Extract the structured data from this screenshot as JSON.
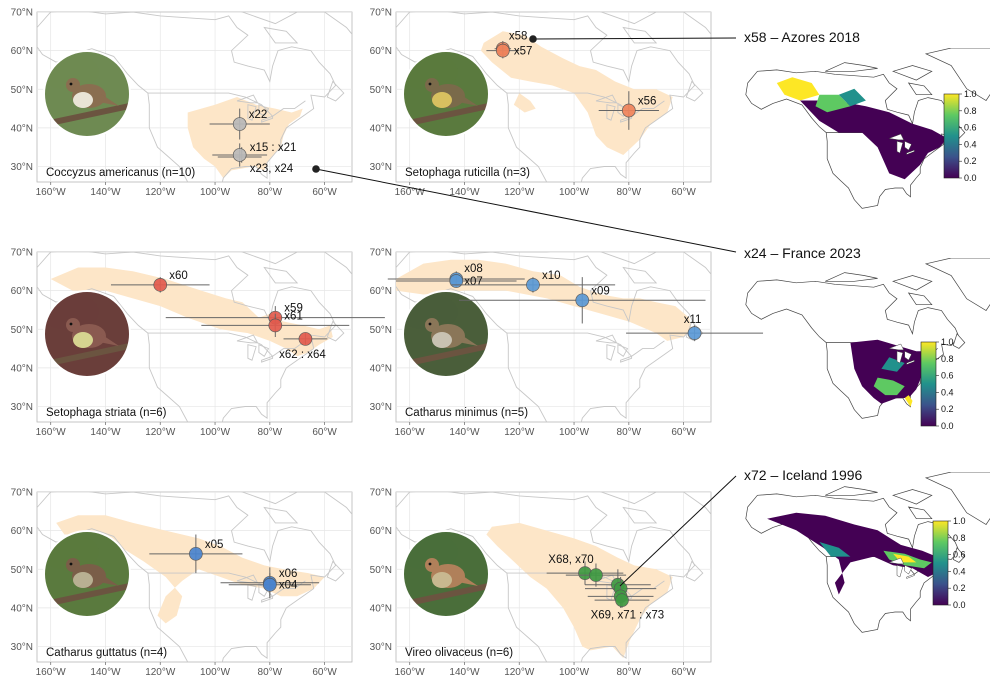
{
  "panels": [
    {
      "id": "coccyzus",
      "species": "Coccyzus americanus (n=10)",
      "color": "#b9b9b9",
      "photo_palette": [
        "#6e8a52",
        "#8a6e50",
        "#e9e4d6"
      ],
      "points": [
        {
          "label": "x22",
          "lon": -91,
          "lat": 41,
          "xerr": 11,
          "yerr": 4
        },
        {
          "label": "x15 : x21",
          "lon": -91,
          "lat": 33,
          "xerr": 10,
          "yerr": 3,
          "multi": true
        },
        {
          "label": "x23, x24",
          "lon": -91,
          "lat": 33,
          "xerr": 9,
          "yerr": 4,
          "label_only": true
        }
      ]
    },
    {
      "id": "ruticilla",
      "species": "Setophaga ruticilla (n=3)",
      "color": "#f0845c",
      "photo_palette": [
        "#5a7a3e",
        "#7a6a4a",
        "#d8c060"
      ],
      "points": [
        {
          "label": "x58",
          "lon": -126,
          "lat": 60.5,
          "xerr": 3,
          "yerr": 2,
          "label_above": true
        },
        {
          "label": "x57",
          "lon": -126,
          "lat": 60,
          "xerr": 6,
          "yerr": 2
        },
        {
          "label": "x56",
          "lon": -80,
          "lat": 44.5,
          "xerr": 11,
          "yerr": 5
        }
      ]
    },
    {
      "id": "striata",
      "species": "Setophaga striata (n=6)",
      "color": "#e25b4e",
      "photo_palette": [
        "#6a3e3a",
        "#8a5a50",
        "#d6d490"
      ],
      "points": [
        {
          "label": "x60",
          "lon": -120,
          "lat": 61.5,
          "xerr": 18,
          "yerr": 2
        },
        {
          "label": "x59",
          "lon": -78,
          "lat": 53,
          "xerr": 40,
          "yerr": 3
        },
        {
          "label": "x61",
          "lon": -78,
          "lat": 51,
          "xerr": 27,
          "yerr": 3
        },
        {
          "label": "x62 : x64",
          "lon": -67,
          "lat": 47.5,
          "xerr": 8,
          "yerr": 1.5
        }
      ]
    },
    {
      "id": "minimus",
      "species": "Catharus minimus (n=5)",
      "color": "#5b99d6",
      "photo_palette": [
        "#4a5e3a",
        "#8a7658",
        "#c8c2b2"
      ],
      "points": [
        {
          "label": "x08",
          "lon": -143,
          "lat": 63,
          "xerr": 25,
          "yerr": 2
        },
        {
          "label": "x07",
          "lon": -143,
          "lat": 62.5,
          "xerr": 22,
          "yerr": 1.5
        },
        {
          "label": "x10",
          "lon": -115,
          "lat": 61.5,
          "xerr": 30,
          "yerr": 2
        },
        {
          "label": "x09",
          "lon": -97,
          "lat": 57.5,
          "xerr": 45,
          "yerr": 6
        },
        {
          "label": "x11",
          "lon": -56,
          "lat": 49,
          "xerr": 25,
          "yerr": 2
        }
      ]
    },
    {
      "id": "guttatus",
      "species": "Catharus guttatus (n=4)",
      "color": "#4a84cf",
      "photo_palette": [
        "#5a7a3e",
        "#7a5e48",
        "#b8b092"
      ],
      "points": [
        {
          "label": "x05",
          "lon": -107,
          "lat": 54,
          "xerr": 17,
          "yerr": 5
        },
        {
          "label": "x06",
          "lon": -80,
          "lat": 46.5,
          "xerr": 18,
          "yerr": 4
        },
        {
          "label": "x04",
          "lon": -80,
          "lat": 46,
          "xerr": 15,
          "yerr": 3
        }
      ]
    },
    {
      "id": "olivaceus",
      "species": "Vireo olivaceus (n=6)",
      "color": "#3e9a42",
      "photo_palette": [
        "#4a6e3a",
        "#b0805a",
        "#c8b890"
      ],
      "points": [
        {
          "label": "X68, x70",
          "lon": -96,
          "lat": 49,
          "xerr": 14,
          "yerr": 3
        },
        {
          "label": "",
          "lon": -92,
          "lat": 48.5,
          "xerr": 11,
          "yerr": 3
        },
        {
          "label": "",
          "lon": -84,
          "lat": 46,
          "xerr": 12,
          "yerr": 4
        },
        {
          "label": "",
          "lon": -83,
          "lat": 45,
          "xerr": 13,
          "yerr": 3
        },
        {
          "label": "X69, x71 : x73",
          "lon": -83,
          "lat": 43,
          "xerr": 12,
          "yerr": 3
        },
        {
          "label": "",
          "lon": -82.5,
          "lat": 42,
          "xerr": 10,
          "yerr": 2
        }
      ]
    }
  ],
  "axes": {
    "lat_ticks": [
      30,
      40,
      50,
      60,
      70
    ],
    "lat_labels": [
      "30°N",
      "40°N",
      "50°N",
      "60°N",
      "70°N"
    ],
    "lon_ticks": [
      -160,
      -140,
      -120,
      -100,
      -80,
      -60
    ],
    "lon_labels": [
      "160°W",
      "140°W",
      "120°W",
      "100°W",
      "80°W",
      "60°W"
    ],
    "lon_range": [
      -165,
      -50
    ],
    "lat_range": [
      26,
      70
    ]
  },
  "callouts": [
    {
      "text": "x58 – Azores 2018"
    },
    {
      "text": "x24 – France 2023"
    },
    {
      "text": "x72 – Iceland 1996"
    }
  ],
  "colorbar": {
    "tick_labels": [
      "0.0",
      "0.2",
      "0.4",
      "0.6",
      "0.8",
      "1.0"
    ],
    "colors": [
      "#440154",
      "#3b528b",
      "#21918c",
      "#5ec962",
      "#fde725"
    ]
  }
}
